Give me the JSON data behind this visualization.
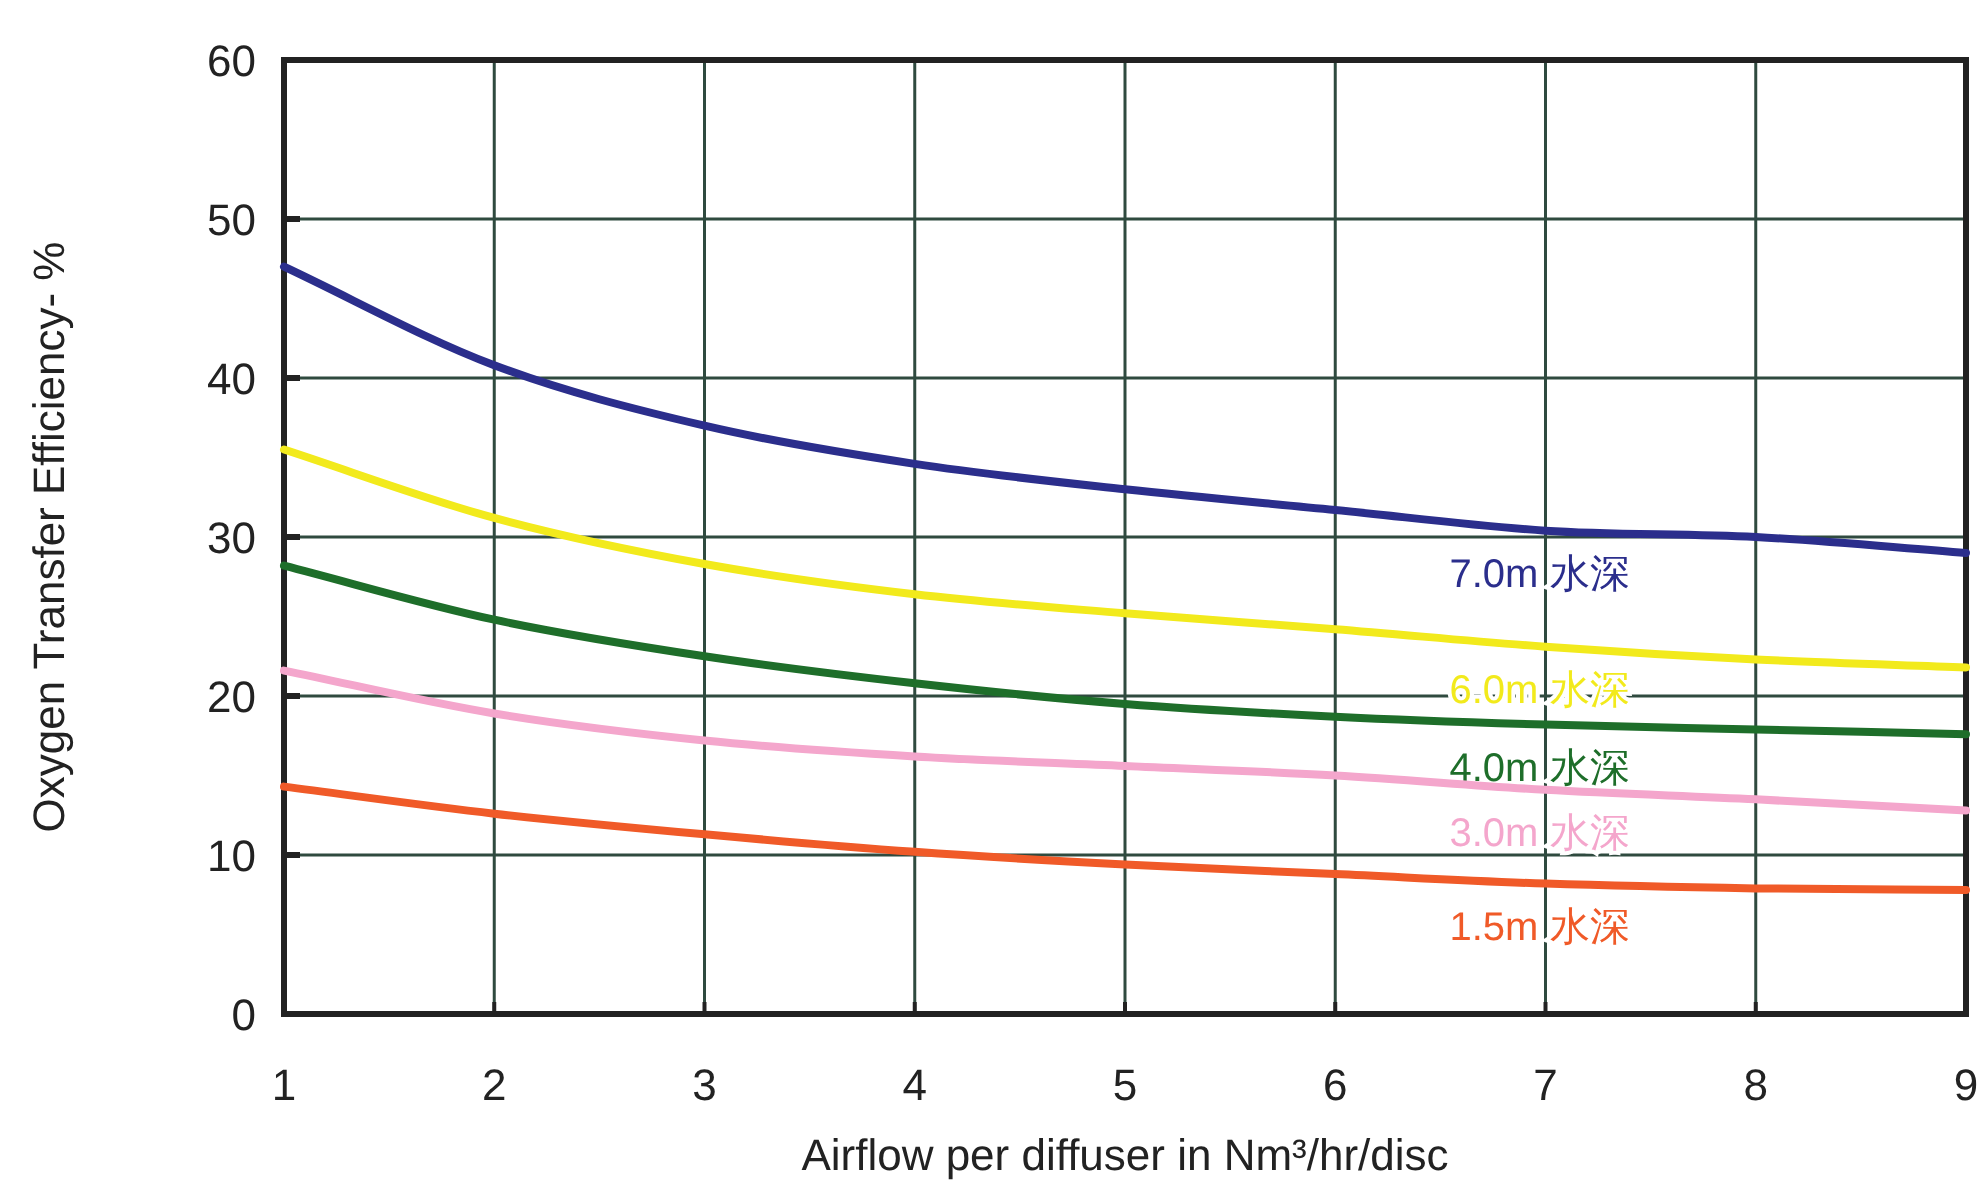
{
  "chart_data": {
    "type": "line",
    "xlabel": "Airflow per diffuser in Nm³/hr/disc",
    "ylabel": "Oxygen Transfer Efficiency- %",
    "x": [
      1,
      2,
      3,
      4,
      5,
      6,
      7,
      8,
      9
    ],
    "xlim": [
      1,
      9
    ],
    "xticks": [
      1,
      2,
      3,
      4,
      5,
      6,
      7,
      8,
      9
    ],
    "ylim": [
      0,
      60
    ],
    "yticks": [
      0,
      10,
      20,
      30,
      40,
      50,
      60
    ],
    "grid": true,
    "legend": false,
    "marker": "none",
    "line_style": "solid",
    "series": [
      {
        "name": "7.0m 水深",
        "color": "#2b2e8c",
        "values": [
          47,
          40.8,
          37,
          34.6,
          33,
          31.7,
          30.4,
          30,
          29
        ]
      },
      {
        "name": "6.0m 水深",
        "color": "#f2ea1c",
        "values": [
          35.5,
          31.2,
          28.3,
          26.4,
          25.2,
          24.2,
          23.1,
          22.3,
          21.8
        ]
      },
      {
        "name": "4.0m 水深",
        "color": "#1e6e2a",
        "values": [
          28.2,
          24.8,
          22.5,
          20.8,
          19.5,
          18.7,
          18.2,
          17.9,
          17.6
        ]
      },
      {
        "name": "3.0m 水深",
        "color": "#f4a6cc",
        "values": [
          21.6,
          18.9,
          17.2,
          16.2,
          15.6,
          15,
          14.1,
          13.5,
          12.8
        ]
      },
      {
        "name": "1.5m 水深",
        "color": "#f05a28",
        "values": [
          14.3,
          12.6,
          11.3,
          10.2,
          9.4,
          8.8,
          8.2,
          7.9,
          7.8
        ]
      }
    ]
  }
}
